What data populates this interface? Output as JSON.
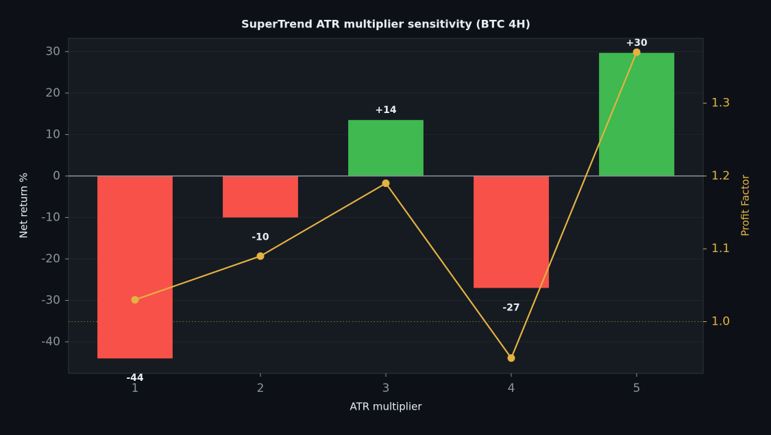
{
  "chart_data": {
    "type": "bar_line",
    "title": "SuperTrend ATR multiplier sensitivity (BTC 4H)",
    "x_label": "ATR multiplier",
    "y_label": "Net return %",
    "y2_label": "Profit Factor",
    "x": [
      1,
      2,
      3,
      4,
      5
    ],
    "xlim": [
      0.47,
      5.53
    ],
    "xticks": [
      1,
      2,
      3,
      4,
      5
    ],
    "ylim": [
      -47.6,
      33.2
    ],
    "yticks": [
      -40,
      -30,
      -20,
      -10,
      0,
      10,
      20,
      30
    ],
    "y2lim": [
      0.929,
      1.389
    ],
    "y2ticks": [
      {
        "value": 1,
        "label": "1.0"
      },
      1.1,
      1.2,
      1.3
    ],
    "y2_reference": 1,
    "grid": true,
    "series": [
      {
        "type": "bar",
        "values": [
          -44,
          -10,
          13.5,
          -27,
          29.7
        ],
        "value_labels": [
          "-44",
          "-10",
          "+14",
          "-27",
          "+30"
        ],
        "positive_color": "#3fb950",
        "negative_color": "#f85149"
      },
      {
        "type": "line",
        "axis": "y2",
        "values": [
          1.03,
          1.09,
          1.19,
          0.95,
          1.37
        ],
        "color": "#e3b341"
      }
    ]
  }
}
